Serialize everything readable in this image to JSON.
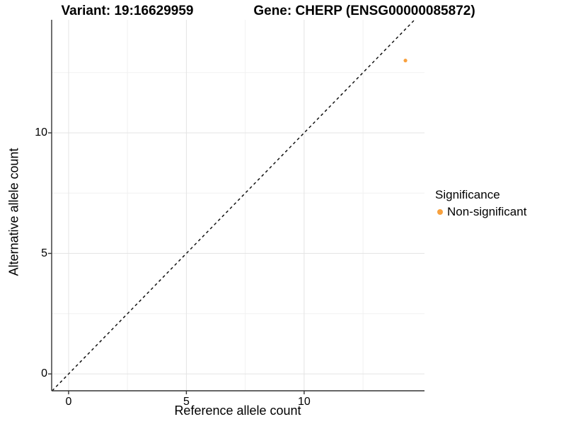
{
  "header": {
    "variant_title": "Variant: 19:16629959",
    "gene_title": "Gene: CHERP (ENSG00000085872)"
  },
  "legend": {
    "title": "Significance",
    "items": [
      {
        "label": "Non-significant",
        "color": "#F8A13E"
      }
    ]
  },
  "colors": {
    "point_orange": "#F8A13E",
    "grid_major": "#E4E4E4",
    "grid_minor": "#F1F1F1",
    "axis_line": "#333333",
    "reference_line": "#111111",
    "background": "#FFFFFF"
  },
  "chart_data": {
    "type": "scatter",
    "title_left": "Variant: 19:16629959",
    "title_right": "Gene: CHERP (ENSG00000085872)",
    "xlabel": "Reference allele count",
    "ylabel": "Alternative allele count",
    "xlim": [
      -0.72,
      15.11
    ],
    "ylim": [
      -0.7,
      14.69
    ],
    "x_ticks": [
      0,
      5,
      10
    ],
    "y_ticks": [
      0,
      5,
      10
    ],
    "x_minor_gridlines": [
      2.5,
      7.5,
      12.5
    ],
    "y_minor_gridlines": [
      2.5,
      7.5,
      12.5
    ],
    "grid": "major+minor",
    "legend_position": "right",
    "series": [
      {
        "name": "Non-significant",
        "color": "#F8A13E",
        "points": [
          [
            14.3,
            13.0
          ]
        ]
      }
    ],
    "reference_line": {
      "type": "identity y=x",
      "style": "dashed",
      "color": "#111111"
    }
  }
}
